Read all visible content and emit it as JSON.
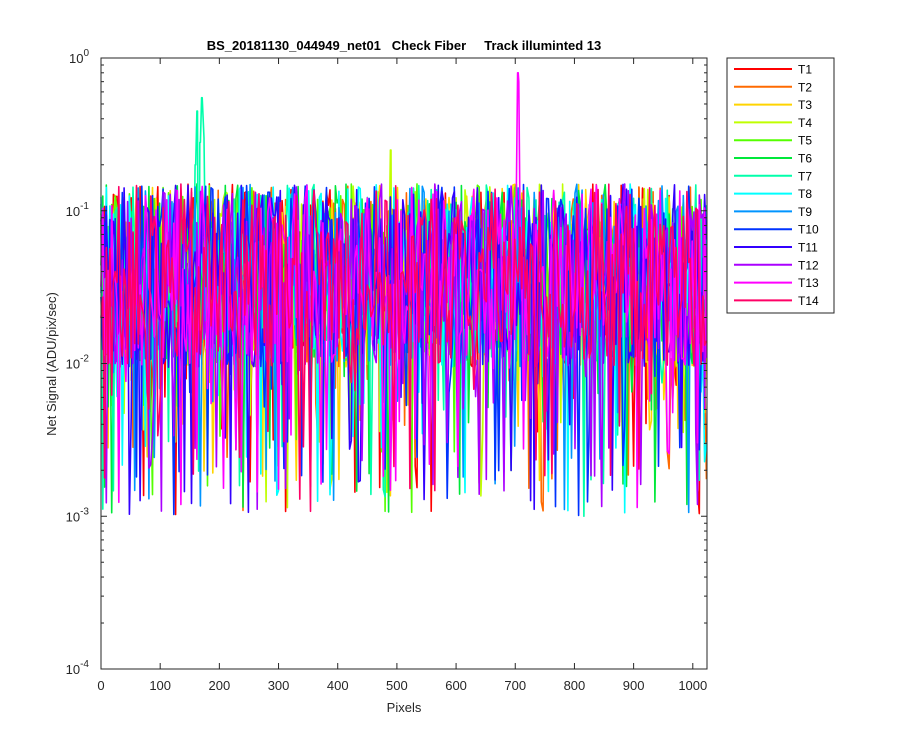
{
  "chart_data": {
    "type": "line",
    "title": "BS_20181130_044949_net01   Check Fiber     Track illuminted 13",
    "xlabel": "Pixels",
    "ylabel": "Net Signal (ADU/pix/sec)",
    "xlim": [
      0,
      1024
    ],
    "ylim": [
      0.0001,
      1
    ],
    "yscale": "log",
    "grid": false,
    "legend_location": "outside-top-right",
    "x_ticks": [
      0,
      100,
      200,
      300,
      400,
      500,
      600,
      700,
      800,
      900,
      1000
    ],
    "x_tick_labels": [
      "0",
      "100",
      "200",
      "300",
      "400",
      "500",
      "600",
      "700",
      "800",
      "900",
      "1000"
    ],
    "y_ticks": [
      {
        "value": 0.0001,
        "base": "10",
        "exp": "-4"
      },
      {
        "value": 0.001,
        "base": "10",
        "exp": "-3"
      },
      {
        "value": 0.01,
        "base": "10",
        "exp": "-2"
      },
      {
        "value": 0.1,
        "base": "10",
        "exp": "-1"
      },
      {
        "value": 1,
        "base": "10",
        "exp": "0"
      }
    ],
    "series": [
      {
        "name": "T1",
        "color": "#ff0000",
        "typical_range": [
          0.001,
          0.15
        ],
        "features": []
      },
      {
        "name": "T2",
        "color": "#ff6a00",
        "typical_range": [
          0.001,
          0.15
        ],
        "features": []
      },
      {
        "name": "T3",
        "color": "#ffd400",
        "typical_range": [
          0.001,
          0.15
        ],
        "features": []
      },
      {
        "name": "T4",
        "color": "#c0ff00",
        "typical_range": [
          0.001,
          0.15
        ],
        "features": [
          {
            "x": 490,
            "y": 0.25
          }
        ]
      },
      {
        "name": "T5",
        "color": "#55ff00",
        "typical_range": [
          0.001,
          0.15
        ],
        "features": []
      },
      {
        "name": "T6",
        "color": "#00e83a",
        "typical_range": [
          0.001,
          0.15
        ],
        "features": []
      },
      {
        "name": "T7",
        "color": "#00ffaa",
        "typical_range": [
          0.001,
          0.15
        ],
        "features": [
          {
            "x": 160,
            "y": 0.2
          },
          {
            "x": 163,
            "y": 0.45
          },
          {
            "x": 167,
            "y": 0.28
          },
          {
            "x": 170,
            "y": 0.55
          },
          {
            "x": 174,
            "y": 0.3
          }
        ]
      },
      {
        "name": "T8",
        "color": "#00ffff",
        "typical_range": [
          0.001,
          0.15
        ],
        "features": []
      },
      {
        "name": "T9",
        "color": "#0095ff",
        "typical_range": [
          0.001,
          0.15
        ],
        "features": []
      },
      {
        "name": "T10",
        "color": "#0033ff",
        "typical_range": [
          0.001,
          0.15
        ],
        "features": []
      },
      {
        "name": "T11",
        "color": "#3300ff",
        "typical_range": [
          0.001,
          0.15
        ],
        "features": []
      },
      {
        "name": "T12",
        "color": "#aa00ff",
        "typical_range": [
          0.001,
          0.15
        ],
        "features": []
      },
      {
        "name": "T13",
        "color": "#ff00ff",
        "typical_range": [
          0.001,
          0.15
        ],
        "features": [
          {
            "x": 704,
            "y": 0.8
          },
          {
            "x": 706,
            "y": 0.7
          }
        ]
      },
      {
        "name": "T14",
        "color": "#ff0066",
        "typical_range": [
          0.001,
          0.15
        ],
        "features": []
      }
    ]
  }
}
